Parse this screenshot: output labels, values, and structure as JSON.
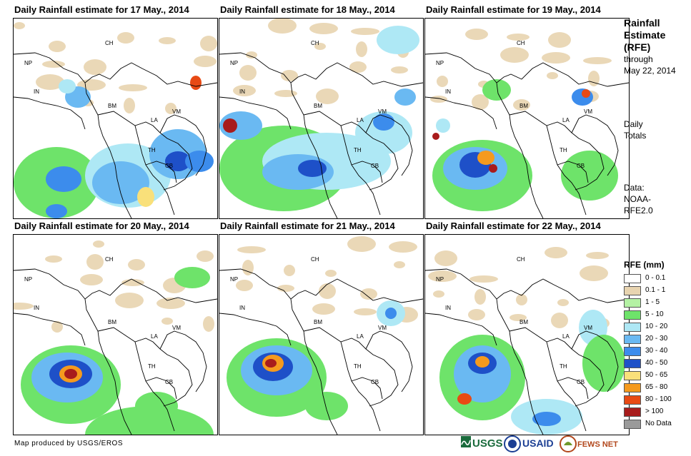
{
  "panels": [
    {
      "title": "Daily Rainfall estimate for 17 May., 2014"
    },
    {
      "title": "Daily Rainfall estimate for 18 May., 2014"
    },
    {
      "title": "Daily Rainfall estimate for 19 May., 2014"
    },
    {
      "title": "Daily Rainfall estimate for 20 May., 2014"
    },
    {
      "title": "Daily Rainfall estimate for 21 May., 2014"
    },
    {
      "title": "Daily Rainfall estimate for 22 May., 2014"
    }
  ],
  "country_labels": [
    "CH",
    "NP",
    "IN",
    "BM",
    "LA",
    "VM",
    "TH",
    "CB"
  ],
  "side": {
    "title_line1": "Rainfall",
    "title_line2": "Estimate",
    "title_line3": "(RFE)",
    "through_line1": "through",
    "through_line2": "May 22, 2014",
    "daily_line1": "Daily",
    "daily_line2": "Totals",
    "data_line1": "Data:",
    "data_line2": "NOAA-",
    "data_line3": "RFE2.0"
  },
  "legend": {
    "title": "RFE (mm)",
    "items": [
      {
        "label": "0 - 0.1",
        "color": "#ffffff"
      },
      {
        "label": "0.1 - 1",
        "color": "#e8d4b0"
      },
      {
        "label": "1 - 5",
        "color": "#b4f2a4"
      },
      {
        "label": "5 - 10",
        "color": "#6ee36a"
      },
      {
        "label": "10 - 20",
        "color": "#aee8f5"
      },
      {
        "label": "20 - 30",
        "color": "#6ab9f2"
      },
      {
        "label": "30 - 40",
        "color": "#3c8cec"
      },
      {
        "label": "40 - 50",
        "color": "#1e50c8"
      },
      {
        "label": "50 - 65",
        "color": "#f9e07a"
      },
      {
        "label": "65 - 80",
        "color": "#f59a1e"
      },
      {
        "label": "80 - 100",
        "color": "#e84a14"
      },
      {
        "label": "> 100",
        "color": "#a81c1c"
      },
      {
        "label": "No Data",
        "color": "#9a9a9a"
      }
    ]
  },
  "footer": "Map produced by USGS/EROS",
  "logos": [
    "USGS",
    "USAID",
    "FEWS NET"
  ]
}
